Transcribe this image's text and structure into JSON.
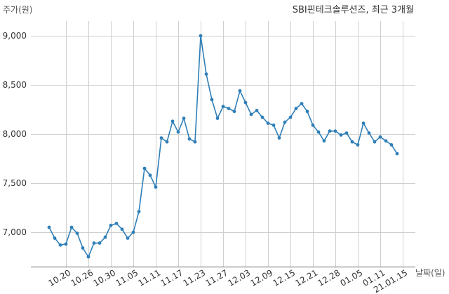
{
  "chart_data": {
    "type": "line",
    "title": "SBI핀테크솔루션즈, 최근 3개월",
    "xlabel": "날짜(일)",
    "ylabel": "주가(원)",
    "ylim": [
      6650,
      9150
    ],
    "yticks": [
      7000,
      7500,
      8000,
      8500,
      9000
    ],
    "ytick_labels": [
      "7,000",
      "7,500",
      "8,000",
      "8,500",
      "9,000"
    ],
    "grid": true,
    "line_color": "#2f7fb8",
    "x_tick_labels": [
      {
        "label": "10.20",
        "index": 3
      },
      {
        "label": "10.26",
        "index": 7
      },
      {
        "label": "10.30",
        "index": 11
      },
      {
        "label": "11.05",
        "index": 15
      },
      {
        "label": "11.11",
        "index": 19
      },
      {
        "label": "11.17",
        "index": 23
      },
      {
        "label": "11.23",
        "index": 27
      },
      {
        "label": "11.27",
        "index": 31
      },
      {
        "label": "12.03",
        "index": 35
      },
      {
        "label": "12.09",
        "index": 39
      },
      {
        "label": "12.15",
        "index": 43
      },
      {
        "label": "12.21",
        "index": 47
      },
      {
        "label": "12.28",
        "index": 51
      },
      {
        "label": "01.05",
        "index": 55
      },
      {
        "label": "01.11",
        "index": 59
      },
      {
        "label": "21.01.15",
        "index": 63
      }
    ],
    "series": [
      {
        "values": [
          7050,
          6940,
          6870,
          6880,
          7050,
          6990,
          6840,
          6750,
          6890,
          6890,
          6950,
          7070,
          7090,
          7030,
          6940,
          7000,
          7210,
          7650,
          7580,
          7460,
          7960,
          7920,
          8130,
          8020,
          8160,
          7950,
          7920,
          9000,
          8610,
          8350,
          8160,
          8280,
          8260,
          8230,
          8440,
          8320,
          8200,
          8240,
          8170,
          8110,
          8090,
          7960,
          8120,
          8170,
          8260,
          8310,
          8230,
          8090,
          8020,
          7930,
          8030,
          8030,
          7990,
          8010,
          7920,
          7890,
          8110,
          8010,
          7920,
          7970,
          7930,
          7890,
          7800
        ]
      }
    ]
  }
}
